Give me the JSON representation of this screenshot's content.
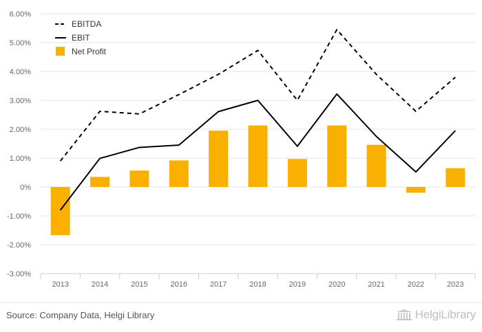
{
  "footer": {
    "source": "Source: Company Data, Helgi Library",
    "brand": "HelgiLibrary"
  },
  "chart_data": {
    "type": "bar",
    "x": [
      "2013",
      "2014",
      "2015",
      "2016",
      "2017",
      "2018",
      "2019",
      "2020",
      "2021",
      "2022",
      "2023"
    ],
    "ylim": [
      -3.0,
      6.0
    ],
    "yticks": [
      -3.0,
      -2.0,
      -1.0,
      0.0,
      1.0,
      2.0,
      3.0,
      4.0,
      5.0,
      6.0
    ],
    "ytick_labels": [
      "-3.00%",
      "-2.00%",
      "-1.00%",
      "0%",
      "1.00%",
      "2.00%",
      "3.00%",
      "4.00%",
      "5.00%",
      "6.00%"
    ],
    "grid": true,
    "legend_position": "top-left",
    "series": [
      {
        "name": "EBITDA",
        "type": "line",
        "style": "dashed",
        "color": "#000000",
        "values": [
          0.9,
          2.62,
          2.53,
          3.2,
          3.9,
          4.73,
          3.0,
          5.45,
          3.9,
          2.62,
          3.8
        ]
      },
      {
        "name": "EBIT",
        "type": "line",
        "style": "solid",
        "color": "#000000",
        "values": [
          -0.8,
          0.99,
          1.37,
          1.45,
          2.61,
          3.0,
          1.41,
          3.22,
          1.75,
          0.52,
          1.95
        ]
      },
      {
        "name": "Net Profit",
        "type": "bar",
        "color": "#f9b000",
        "values": [
          -1.67,
          0.35,
          0.57,
          0.92,
          1.95,
          2.13,
          0.97,
          2.13,
          1.46,
          -0.2,
          0.65
        ]
      }
    ]
  }
}
